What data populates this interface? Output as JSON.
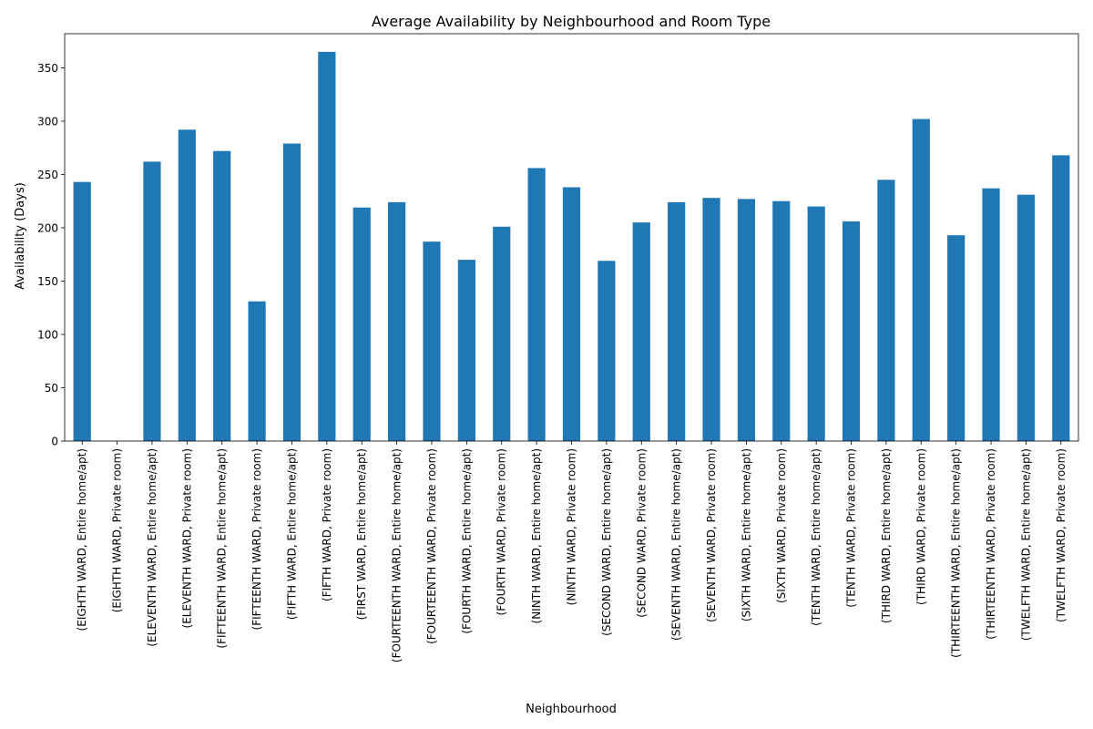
{
  "chart_data": {
    "type": "bar",
    "title": "Average Availability by Neighbourhood and Room Type",
    "xlabel": "Neighbourhood",
    "ylabel": "Availability (Days)",
    "ylim": [
      0,
      382
    ],
    "yticks": [
      0,
      50,
      100,
      150,
      200,
      250,
      300,
      350
    ],
    "grid": false,
    "color": "#1f77b4",
    "categories": [
      "(EIGHTH WARD, Entire home/apt)",
      "(EIGHTH WARD, Private room)",
      "(ELEVENTH WARD, Entire home/apt)",
      "(ELEVENTH WARD, Private room)",
      "(FIFTEENTH WARD, Entire home/apt)",
      "(FIFTEENTH WARD, Private room)",
      "(FIFTH WARD, Entire home/apt)",
      "(FIFTH WARD, Private room)",
      "(FIRST WARD, Entire home/apt)",
      "(FOURTEENTH WARD, Entire home/apt)",
      "(FOURTEENTH WARD, Private room)",
      "(FOURTH WARD, Entire home/apt)",
      "(FOURTH WARD, Private room)",
      "(NINTH WARD, Entire home/apt)",
      "(NINTH WARD, Private room)",
      "(SECOND WARD, Entire home/apt)",
      "(SECOND WARD, Private room)",
      "(SEVENTH WARD, Entire home/apt)",
      "(SEVENTH WARD, Private room)",
      "(SIXTH WARD, Entire home/apt)",
      "(SIXTH WARD, Private room)",
      "(TENTH WARD, Entire home/apt)",
      "(TENTH WARD, Private room)",
      "(THIRD WARD, Entire home/apt)",
      "(THIRD WARD, Private room)",
      "(THIRTEENTH WARD, Entire home/apt)",
      "(THIRTEENTH WARD, Private room)",
      "(TWELFTH WARD, Entire home/apt)",
      "(TWELFTH WARD, Private room)"
    ],
    "values": [
      243,
      0,
      262,
      292,
      272,
      131,
      279,
      365,
      219,
      224,
      187,
      170,
      201,
      256,
      238,
      169,
      205,
      224,
      228,
      227,
      225,
      220,
      206,
      245,
      302,
      193,
      237,
      231,
      268
    ]
  }
}
